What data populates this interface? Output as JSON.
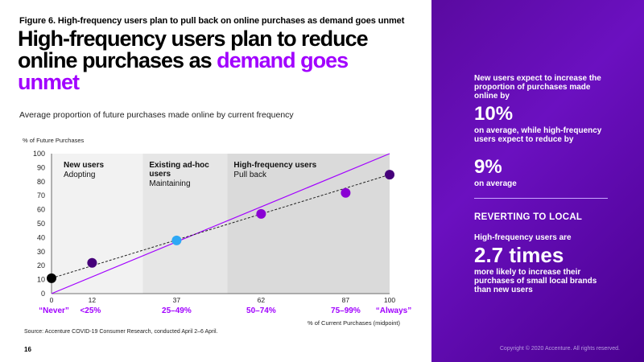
{
  "figure_label": "Figure 6. High-frequency users plan to pull back on online purchases as demand goes unmet",
  "headline": {
    "line1": "High-frequency users plan to reduce",
    "line2_plain": "online purchases as ",
    "line2_accent": "demand goes",
    "line3_accent": "unmet"
  },
  "subtitle": "Average proportion of future purchases made online by current frequency",
  "source": "Source: Accenture COVID-19 Consumer Research, conducted April 2–6 April.",
  "page_number": "16",
  "sidebar": {
    "text1": "New users expect to increase the proportion of purchases made online by",
    "big1": "10%",
    "text2": "on average, while high-frequency users expect to reduce by",
    "big2": "9%",
    "text3": "on average",
    "heading": "REVERTING TO LOCAL",
    "text4": "High-frequency users are",
    "big3": "2.7 times",
    "text5": "more likely to increase their purchases of small local brands than new users",
    "copyright": "Copyright © 2020 Accenture. All rights reserved."
  },
  "colors": {
    "accent": "#a100ff",
    "dark_purple": "#46007a",
    "mid_purple": "#8a00d4",
    "cyan": "#2ea8f5",
    "black": "#000000"
  },
  "chart_data": {
    "type": "scatter",
    "ylabel": "% of Future Purchases",
    "xlabel": "% of Current Purchases (midpoint)",
    "xlim": [
      0,
      100
    ],
    "ylim": [
      0,
      100
    ],
    "y_ticks": [
      0,
      10,
      20,
      30,
      40,
      50,
      60,
      70,
      80,
      90,
      100
    ],
    "x_ticks": [
      0,
      12,
      37,
      62,
      87,
      100
    ],
    "x_category_labels": [
      {
        "x": 0,
        "label": "“Never”"
      },
      {
        "x": 12,
        "label": "<25%"
      },
      {
        "x": 37,
        "label": "25–49%"
      },
      {
        "x": 62,
        "label": "50–74%"
      },
      {
        "x": 87,
        "label": "75–99%"
      },
      {
        "x": 100,
        "label": "“Always”"
      }
    ],
    "points": [
      {
        "x": 0,
        "y": 11,
        "color": "#000000"
      },
      {
        "x": 12,
        "y": 22,
        "color": "#46007a"
      },
      {
        "x": 37,
        "y": 38,
        "color": "#2ea8f5"
      },
      {
        "x": 62,
        "y": 57,
        "color": "#8a00d4"
      },
      {
        "x": 87,
        "y": 72,
        "color": "#8a00d4"
      },
      {
        "x": 100,
        "y": 85,
        "color": "#46007a"
      }
    ],
    "trend_line": {
      "from": [
        0,
        11
      ],
      "to": [
        100,
        85
      ],
      "style": "dashed"
    },
    "reference_line": {
      "from": [
        0,
        0
      ],
      "to": [
        100,
        100
      ],
      "color": "#a100ff"
    },
    "regions": [
      {
        "from_x": 0,
        "to_x": 27,
        "title": "New users",
        "subtitle": "Adopting",
        "fill": "#f2f2f2"
      },
      {
        "from_x": 27,
        "to_x": 52,
        "title": "Existing ad-hoc users",
        "subtitle": "Maintaining",
        "fill": "#e6e6e6"
      },
      {
        "from_x": 52,
        "to_x": 100,
        "title": "High-frequency users",
        "subtitle": "Pull back",
        "fill": "#dadada"
      }
    ]
  }
}
